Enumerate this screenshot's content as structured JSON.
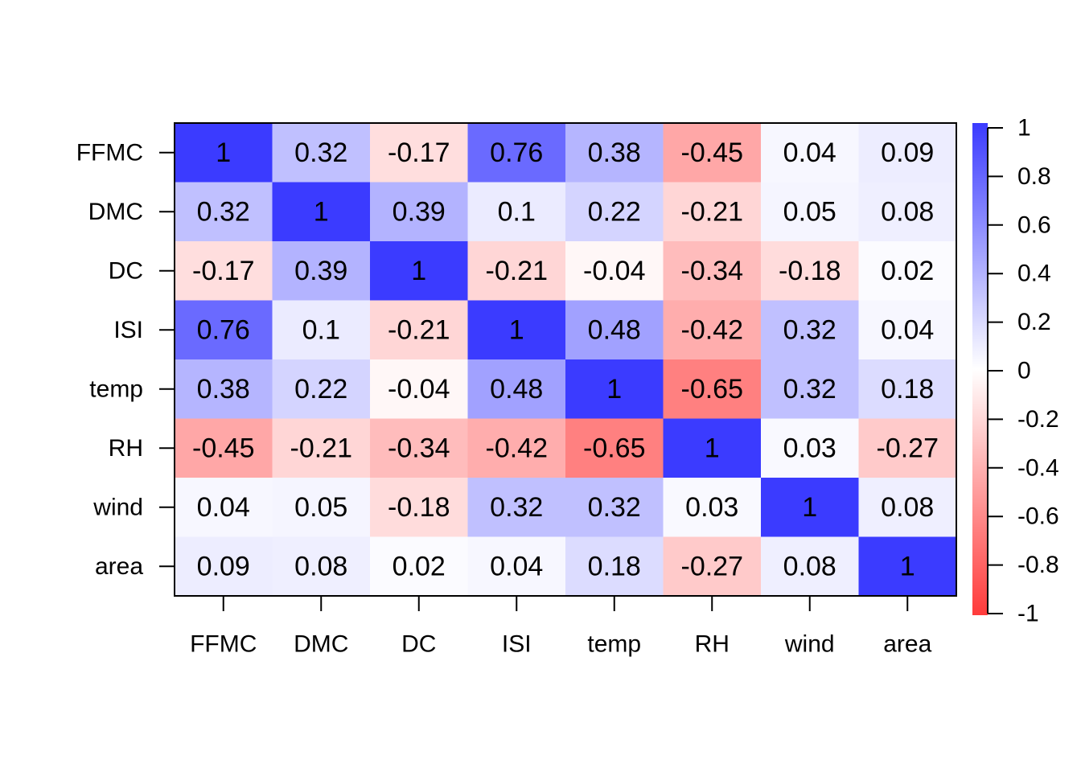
{
  "chart_data": {
    "type": "heatmap",
    "title": "",
    "xlabel": "",
    "ylabel": "",
    "x_categories": [
      "FFMC",
      "DMC",
      "DC",
      "ISI",
      "temp",
      "RH",
      "wind",
      "area"
    ],
    "y_categories": [
      "FFMC",
      "DMC",
      "DC",
      "ISI",
      "temp",
      "RH",
      "wind",
      "area"
    ],
    "values": [
      [
        1,
        0.32,
        -0.17,
        0.76,
        0.38,
        -0.45,
        0.04,
        0.09
      ],
      [
        0.32,
        1,
        0.39,
        0.1,
        0.22,
        -0.21,
        0.05,
        0.08
      ],
      [
        -0.17,
        0.39,
        1,
        -0.21,
        -0.04,
        -0.34,
        -0.18,
        0.02
      ],
      [
        0.76,
        0.1,
        -0.21,
        1,
        0.48,
        -0.42,
        0.32,
        0.04
      ],
      [
        0.38,
        0.22,
        -0.04,
        0.48,
        1,
        -0.65,
        0.32,
        0.18
      ],
      [
        -0.45,
        -0.21,
        -0.34,
        -0.42,
        -0.65,
        1,
        0.03,
        -0.27
      ],
      [
        0.04,
        0.05,
        -0.18,
        0.32,
        0.32,
        0.03,
        1,
        0.08
      ],
      [
        0.09,
        0.08,
        0.02,
        0.04,
        0.18,
        -0.27,
        0.08,
        1
      ]
    ],
    "color_scale": {
      "min": -1,
      "max": 1,
      "low_color": "#FF3B3B",
      "mid_color": "#FFFFFF",
      "high_color": "#3B3BFF",
      "ticks": [
        "1",
        "0.8",
        "0.6",
        "0.4",
        "0.2",
        "0",
        "-0.2",
        "-0.4",
        "-0.6",
        "-0.8",
        "-1"
      ]
    },
    "legend_position": "right",
    "grid": false
  }
}
